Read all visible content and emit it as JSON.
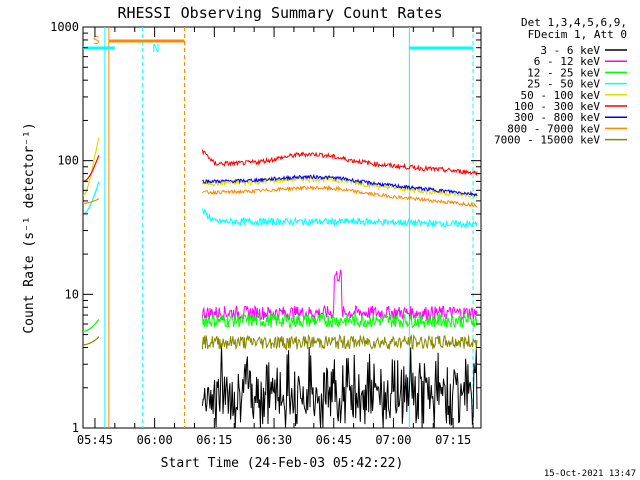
{
  "chart_data": {
    "type": "line",
    "title": "RHESSI Observing Summary Count Rates",
    "xlabel": "Start Time (24-Feb-03 05:42:22)",
    "ylabel": "Count Rate (s⁻¹ detector⁻¹)",
    "y_scale": "log",
    "ylim": [
      1,
      1000
    ],
    "xlim_minutes_from_0542": [
      0,
      100
    ],
    "x_ticks": [
      {
        "label": "05:45",
        "minute": 3
      },
      {
        "label": "06:00",
        "minute": 18
      },
      {
        "label": "06:15",
        "minute": 33
      },
      {
        "label": "06:30",
        "minute": 48
      },
      {
        "label": "06:45",
        "minute": 63
      },
      {
        "label": "07:00",
        "minute": 78
      },
      {
        "label": "07:15",
        "minute": 93
      }
    ],
    "y_ticks": [
      {
        "label": "1",
        "value": 1
      },
      {
        "label": "10",
        "value": 10
      },
      {
        "label": "100",
        "value": 100
      },
      {
        "label": "1000",
        "value": 1000
      }
    ],
    "legend_header": [
      "Det 1,3,4,5,6,9,",
      "FDecim 1, Att 0"
    ],
    "series": [
      {
        "name": "3 - 6 keV",
        "color": "#000000",
        "base": 1.8,
        "ampl": 0.35,
        "seg1": null
      },
      {
        "name": "6 - 12 keV",
        "color": "#ff00ff",
        "base": 7.3,
        "ampl": 0.12,
        "seg1": null
      },
      {
        "name": "12 - 25 keV",
        "color": "#00ff00",
        "base": 6.4,
        "ampl": 0.12,
        "seg1": [
          5.3,
          6.5
        ]
      },
      {
        "name": "25 - 50 keV",
        "color": "#00ffff",
        "base": 35,
        "ampl": 0.06,
        "seg1": [
          40,
          70
        ]
      },
      {
        "name": "50 - 100 keV",
        "color": "#dddd00",
        "base": 68,
        "ampl": 0.05,
        "seg1": [
          55,
          150
        ]
      },
      {
        "name": "100 - 300 keV",
        "color": "#ff0000",
        "base": 95,
        "ampl": 0.04,
        "seg1": [
          70,
          110
        ]
      },
      {
        "name": "300 - 800 keV",
        "color": "#0000ff",
        "base": 70,
        "ampl": 0.03,
        "seg1": null
      },
      {
        "name": "800 - 7000 keV",
        "color": "#ff8800",
        "base": 58,
        "ampl": 0.03,
        "seg1": [
          48,
          52
        ]
      },
      {
        "name": "7000 - 15000 keV",
        "color": "#888800",
        "base": 4.4,
        "ampl": 0.12,
        "seg1": [
          4.2,
          4.8
        ]
      }
    ],
    "flags": [
      {
        "label": "S",
        "color": "#ff8800"
      },
      {
        "label": "N",
        "color": "#00ffff"
      }
    ],
    "timestamp": "15-Oct-2021 13:47"
  }
}
